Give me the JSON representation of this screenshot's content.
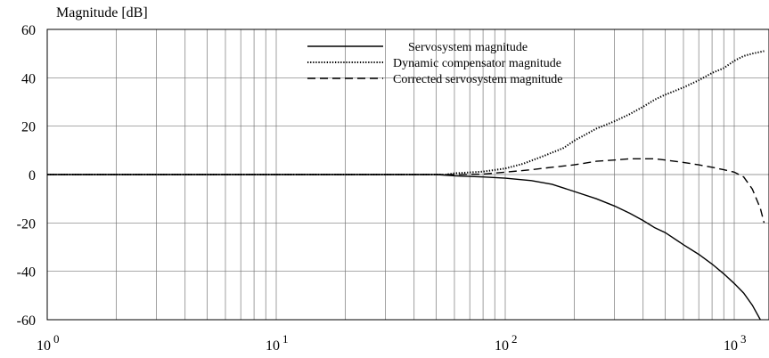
{
  "chart_data": {
    "type": "line",
    "title": "",
    "ylabel": "Magnitude [dB]",
    "xlabel": "",
    "xscale": "log",
    "xlim": [
      1,
      1350
    ],
    "ylim": [
      -60,
      60
    ],
    "grid": true,
    "legend_position": "top-right",
    "y_ticks": [
      "60",
      "40",
      "20",
      "0",
      "-20",
      "-40",
      "-60"
    ],
    "x_ticks": [
      {
        "base": "10",
        "exp": "0",
        "value": 1
      },
      {
        "base": "10",
        "exp": "1",
        "value": 10
      },
      {
        "base": "10",
        "exp": "2",
        "value": 100
      },
      {
        "base": "10",
        "exp": "3",
        "value": 1000
      }
    ],
    "series": [
      {
        "name": "Servosystem magnitude",
        "style": "solid",
        "color": "#000000",
        "points": [
          [
            1,
            0
          ],
          [
            10,
            0
          ],
          [
            50,
            0
          ],
          [
            60,
            -0.5
          ],
          [
            80,
            -1
          ],
          [
            100,
            -1.5
          ],
          [
            130,
            -2.5
          ],
          [
            160,
            -4
          ],
          [
            200,
            -7
          ],
          [
            250,
            -10
          ],
          [
            300,
            -13
          ],
          [
            350,
            -16
          ],
          [
            400,
            -19
          ],
          [
            450,
            -22
          ],
          [
            500,
            -24
          ],
          [
            600,
            -29
          ],
          [
            700,
            -33
          ],
          [
            800,
            -37
          ],
          [
            900,
            -41
          ],
          [
            1000,
            -45
          ],
          [
            1100,
            -49
          ],
          [
            1200,
            -54
          ],
          [
            1300,
            -60
          ]
        ]
      },
      {
        "name": "Dynamic compensator magnitude",
        "style": "dotted",
        "color": "#000000",
        "points": [
          [
            1,
            0
          ],
          [
            10,
            0
          ],
          [
            55,
            0
          ],
          [
            60,
            0.5
          ],
          [
            80,
            1.2
          ],
          [
            100,
            2.5
          ],
          [
            120,
            4.5
          ],
          [
            150,
            8
          ],
          [
            180,
            11
          ],
          [
            200,
            14
          ],
          [
            250,
            19
          ],
          [
            300,
            22
          ],
          [
            350,
            25
          ],
          [
            400,
            28
          ],
          [
            450,
            31
          ],
          [
            500,
            33
          ],
          [
            600,
            36
          ],
          [
            700,
            39
          ],
          [
            800,
            42
          ],
          [
            900,
            44
          ],
          [
            1000,
            47
          ],
          [
            1100,
            49
          ],
          [
            1200,
            50
          ],
          [
            1350,
            51
          ]
        ]
      },
      {
        "name": "Corrected servosystem magnitude",
        "style": "dashed",
        "color": "#000000",
        "points": [
          [
            1,
            0
          ],
          [
            10,
            0
          ],
          [
            55,
            0
          ],
          [
            60,
            0
          ],
          [
            80,
            0.2
          ],
          [
            100,
            1
          ],
          [
            130,
            2
          ],
          [
            160,
            3
          ],
          [
            200,
            4
          ],
          [
            250,
            5.5
          ],
          [
            300,
            6
          ],
          [
            350,
            6.5
          ],
          [
            400,
            6.5
          ],
          [
            450,
            6.5
          ],
          [
            500,
            6
          ],
          [
            600,
            5
          ],
          [
            700,
            4
          ],
          [
            800,
            3
          ],
          [
            900,
            2
          ],
          [
            1000,
            1
          ],
          [
            1100,
            -1
          ],
          [
            1200,
            -6
          ],
          [
            1300,
            -14
          ],
          [
            1350,
            -20
          ]
        ]
      }
    ]
  }
}
